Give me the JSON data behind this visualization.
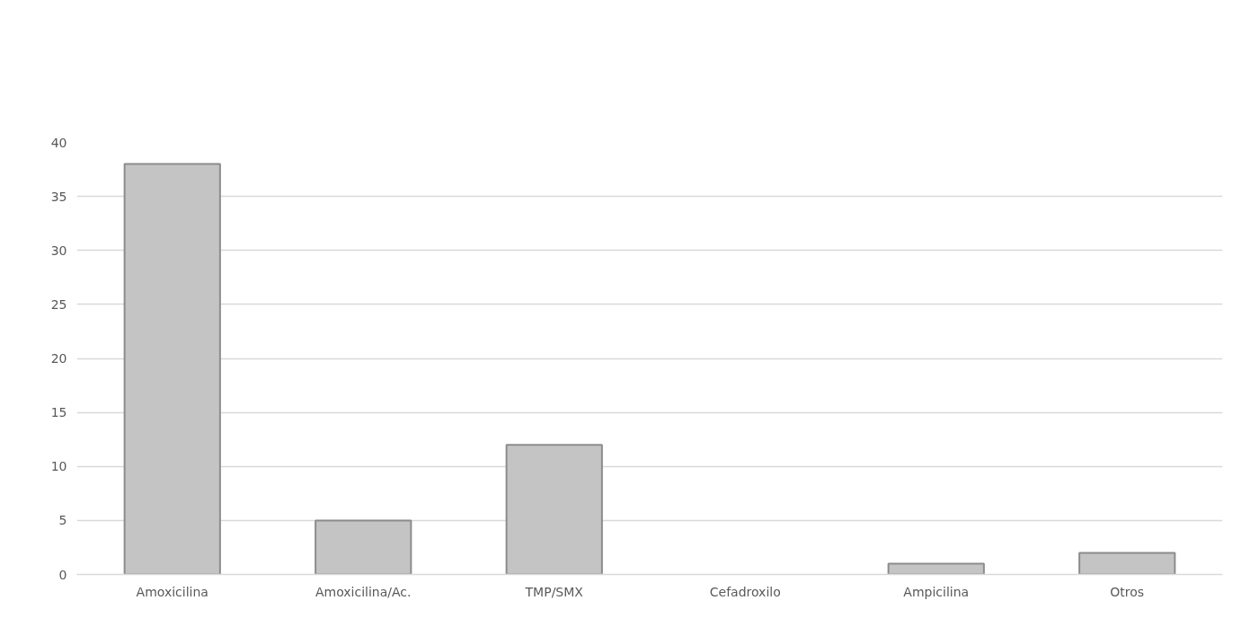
{
  "chart_data": {
    "type": "bar",
    "categories": [
      "Amoxicilina",
      "Amoxicilina/Ac.",
      "TMP/SMX",
      "Cefadroxilo",
      "Ampicilina",
      "Otros"
    ],
    "values": [
      38,
      5,
      12,
      0,
      1,
      2
    ],
    "color": "#c4c4c4",
    "ylim": [
      0,
      40
    ],
    "yticks": [
      0,
      5,
      10,
      15,
      20,
      25,
      30,
      35,
      40
    ],
    "grid": "y"
  }
}
